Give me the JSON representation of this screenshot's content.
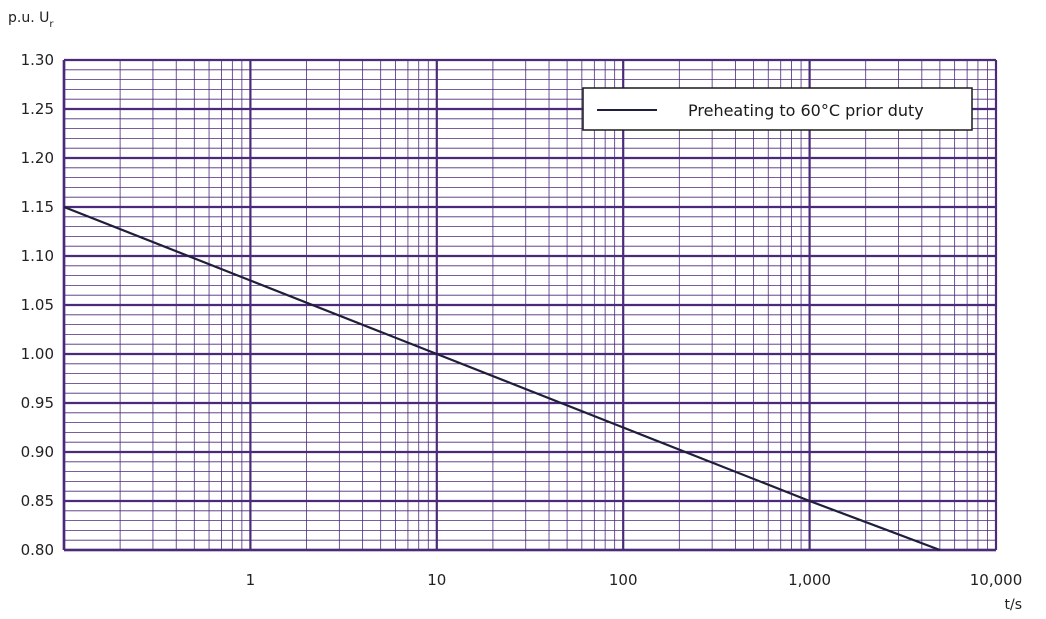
{
  "chart_data": {
    "type": "line",
    "title": "",
    "ylabel": {
      "main": "p.u. U",
      "subscript": "r"
    },
    "xlabel": "t/s",
    "x_scale": "log",
    "xlim": [
      0.1,
      10000
    ],
    "ylim": [
      0.8,
      1.3
    ],
    "x_tick_values": [
      1,
      10,
      100,
      1000,
      10000
    ],
    "x_tick_labels": [
      "1",
      "10",
      "100",
      "1,000",
      "10,000"
    ],
    "y_tick_values": [
      0.8,
      0.85,
      0.9,
      0.95,
      1.0,
      1.05,
      1.1,
      1.15,
      1.2,
      1.25,
      1.3
    ],
    "y_tick_labels": [
      "0.80",
      "0.85",
      "0.90",
      "0.95",
      "1.00",
      "1.05",
      "1.10",
      "1.15",
      "1.20",
      "1.25",
      "1.30"
    ],
    "grid": true,
    "legend_position": "top-right",
    "series": [
      {
        "name": "Preheating to 60°C prior duty",
        "x": [
          0.1,
          1,
          10,
          100,
          1000,
          5000
        ],
        "y": [
          1.15,
          1.075,
          1.0,
          0.925,
          0.85,
          0.8
        ]
      }
    ]
  },
  "colors": {
    "grid": "#4b2a7b",
    "line": "#1f1f3d",
    "text": "#222222"
  }
}
